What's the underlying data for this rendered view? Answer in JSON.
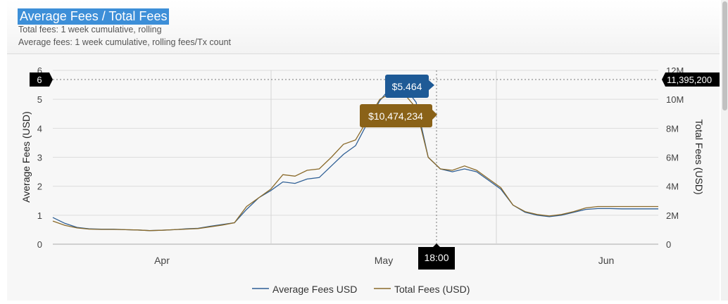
{
  "header": {
    "title": "Average Fees / Total Fees",
    "subtitle1": "Total fees: 1 week cumulative, rolling",
    "subtitle2": "Average fees: 1 week cumulative, rolling fees/Tx count"
  },
  "colors": {
    "avg": "#2f5f95",
    "total": "#8a6a2a",
    "avg_tip": "#1e5a96",
    "total_tip": "#8a6218",
    "crosshair_tip": "#000000"
  },
  "chart_data": {
    "type": "line",
    "x_labels": [
      "Apr",
      "May",
      "Jun"
    ],
    "yleft": {
      "label": "Average Fees (USD)",
      "ticks": [
        "0",
        "1",
        "2",
        "3",
        "4",
        "5",
        "6"
      ],
      "range": [
        0,
        6
      ]
    },
    "yright": {
      "label": "Total Fees (USD)",
      "ticks": [
        "0",
        "2M",
        "4M",
        "6M",
        "8M",
        "10M",
        "12M"
      ],
      "range": [
        0,
        12000000
      ]
    },
    "grid": true,
    "legend": {
      "position": "bottom-center",
      "items": [
        "Average Fees USD",
        "Total Fees (USD)"
      ]
    },
    "series": [
      {
        "name": "Average Fees USD",
        "axis": "left",
        "x": [
          0,
          2,
          4,
          6,
          8,
          10,
          12,
          14,
          16,
          18,
          20,
          22,
          24,
          26,
          28,
          30,
          32,
          34,
          36,
          38,
          40,
          42,
          44,
          46,
          48,
          50,
          52,
          54,
          56,
          58,
          60,
          62,
          64,
          66,
          68,
          70,
          72,
          74,
          76,
          78,
          80,
          82,
          84,
          86,
          88,
          90,
          92,
          94,
          96,
          98,
          100
        ],
        "y": [
          0.92,
          0.72,
          0.58,
          0.53,
          0.52,
          0.52,
          0.5,
          0.49,
          0.47,
          0.48,
          0.5,
          0.53,
          0.55,
          0.62,
          0.68,
          0.74,
          1.2,
          1.6,
          1.85,
          2.15,
          2.1,
          2.25,
          2.3,
          2.7,
          3.1,
          3.4,
          4.2,
          4.95,
          5.46,
          5.45,
          4.9,
          3.0,
          2.6,
          2.5,
          2.6,
          2.5,
          2.2,
          1.9,
          1.35,
          1.1,
          1.0,
          0.95,
          1.0,
          1.1,
          1.2,
          1.23,
          1.23,
          1.22,
          1.22,
          1.22,
          1.22
        ]
      },
      {
        "name": "Total Fees (USD)",
        "axis": "right",
        "x": [
          0,
          2,
          4,
          6,
          8,
          10,
          12,
          14,
          16,
          18,
          20,
          22,
          24,
          26,
          28,
          30,
          32,
          34,
          36,
          38,
          40,
          42,
          44,
          46,
          48,
          50,
          52,
          54,
          56,
          58,
          60,
          62,
          64,
          66,
          68,
          70,
          72,
          74,
          76,
          78,
          80,
          82,
          84,
          86,
          88,
          90,
          92,
          94,
          96,
          98,
          100
        ],
        "y": [
          1600000,
          1300000,
          1120000,
          1040000,
          1020000,
          1020000,
          1000000,
          980000,
          940000,
          960000,
          1000000,
          1040000,
          1080000,
          1200000,
          1320000,
          1480000,
          2600000,
          3200000,
          3800000,
          4800000,
          4700000,
          5100000,
          5200000,
          6000000,
          6900000,
          7200000,
          8600000,
          10000000,
          10474234,
          10400000,
          9400000,
          6000000,
          5200000,
          5100000,
          5400000,
          5100000,
          4500000,
          3900000,
          2700000,
          2250000,
          2050000,
          1950000,
          2050000,
          2250000,
          2500000,
          2600000,
          2600000,
          2600000,
          2600000,
          2600000,
          2600000
        ]
      }
    ],
    "crosshair": {
      "x_label": "18:00",
      "left_value": "6",
      "right_value": "11,395,200",
      "avg_tooltip": "$5.464",
      "total_tooltip": "$10,474,234"
    }
  }
}
